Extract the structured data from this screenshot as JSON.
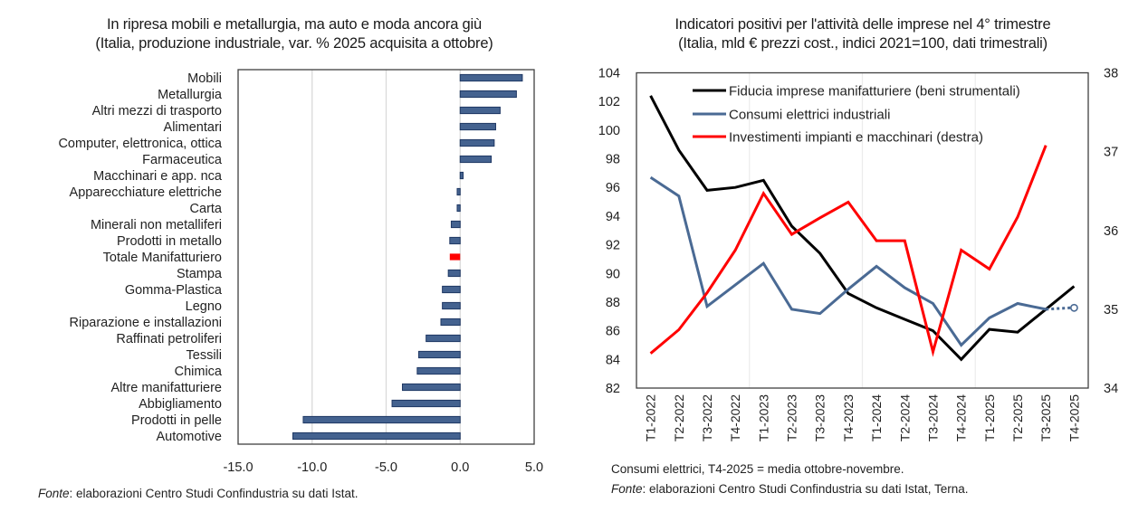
{
  "left": {
    "title": "In ripresa mobili e metallurgia, ma auto e moda ancora giù",
    "subtitle": "(Italia, produzione industriale, var. % 2025 acquisita a ottobre)",
    "source_label": "Fonte",
    "source_text": ": elaborazioni Centro Studi Confindustria su dati Istat.",
    "colors": {
      "bar": "#44628f",
      "bar_border": "#1f3864",
      "highlight": "#ff0000",
      "grid": "#d9d9d9"
    }
  },
  "right": {
    "title": "Indicatori positivi per l'attività delle imprese nel 4° trimestre",
    "subtitle": "(Italia, mld € prezzi cost., indici 2021=100, dati trimestrali)",
    "note": "Consumi elettrici, T4-2025 = media ottobre-novembre.",
    "source_label": "Fonte",
    "source_text": ": elaborazioni Centro Studi Confindustria su dati Istat, Terna.",
    "colors": {
      "black": "#000000",
      "blue": "#4a6a94",
      "red": "#ff0000",
      "grid": "#ececec"
    }
  },
  "chart_data": [
    {
      "type": "bar",
      "orientation": "horizontal",
      "title": "In ripresa mobili e metallurgia, ma auto e moda ancora giù",
      "subtitle": "(Italia, produzione industriale, var. % 2025 acquisita a ottobre)",
      "xlabel": "",
      "ylabel": "",
      "xlim": [
        -15,
        5
      ],
      "xticks": [
        "-15.0",
        "-10.0",
        "-5.0",
        "0.0",
        "5.0"
      ],
      "xtick_values": [
        -15,
        -10,
        -5,
        0,
        5
      ],
      "grid": "vertical",
      "categories": [
        "Mobili",
        "Metallurgia",
        "Altri mezzi di trasporto",
        "Alimentari",
        "Computer, elettronica, ottica",
        "Farmaceutica",
        "Macchinari e app. nca",
        "Apparecchiature elettriche",
        "Carta",
        "Minerali non metalliferi",
        "Prodotti in metallo",
        "Totale Manifatturiero",
        "Stampa",
        "Gomma-Plastica",
        "Legno",
        "Riparazione e installazioni",
        "Raffinati petroliferi",
        "Tessili",
        "Chimica",
        "Altre manifatturiere",
        "Abbigliamento",
        "Prodotti in pelle",
        "Automotive"
      ],
      "values": [
        4.2,
        3.8,
        2.7,
        2.4,
        2.3,
        2.1,
        0.2,
        -0.2,
        -0.2,
        -0.6,
        -0.7,
        -0.7,
        -0.8,
        -1.2,
        -1.2,
        -1.3,
        -2.3,
        -2.8,
        -2.9,
        -3.9,
        -4.6,
        -10.6,
        -11.3
      ],
      "highlight": "Totale Manifatturiero"
    },
    {
      "type": "line",
      "title": "Indicatori positivi per l'attività delle imprese nel 4° trimestre",
      "subtitle": "(Italia, mld € prezzi cost., indici 2021=100, dati trimestrali)",
      "x": [
        "T1-2022",
        "T2-2022",
        "T3-2022",
        "T4-2022",
        "T1-2023",
        "T2-2023",
        "T3-2023",
        "T4-2023",
        "T1-2024",
        "T2-2024",
        "T3-2024",
        "T4-2024",
        "T1-2025",
        "T2-2025",
        "T3-2025",
        "T4-2025"
      ],
      "ylim": [
        82,
        104
      ],
      "yticks": [
        82,
        84,
        86,
        88,
        90,
        92,
        94,
        96,
        98,
        100,
        102,
        104
      ],
      "y2lim": [
        34,
        38
      ],
      "y2ticks": [
        34,
        35,
        36,
        37,
        38
      ],
      "legend": "top-right",
      "series": [
        {
          "name": "Fiducia imprese manifatturiere (beni strumentali)",
          "axis": "left",
          "color": "#000000",
          "values": [
            102.4,
            98.6,
            95.8,
            96.0,
            96.5,
            93.3,
            91.4,
            88.6,
            87.6,
            86.8,
            86.0,
            84.0,
            86.1,
            85.9,
            87.5,
            89.1
          ]
        },
        {
          "name": "Consumi elettrici industriali",
          "axis": "left",
          "color": "#4a6a94",
          "values": [
            96.7,
            95.4,
            87.7,
            89.2,
            90.7,
            87.5,
            87.2,
            88.9,
            90.5,
            89.0,
            87.9,
            85.0,
            86.9,
            87.9,
            87.5,
            87.6
          ],
          "estimated_last": true
        },
        {
          "name": "Investimenti impianti e macchinari (destra)",
          "axis": "right",
          "color": "#ff0000",
          "values": [
            34.44,
            34.74,
            35.21,
            35.75,
            36.47,
            35.95,
            36.16,
            36.36,
            35.87,
            35.87,
            34.46,
            35.75,
            35.51,
            36.17,
            37.08,
            null
          ]
        }
      ]
    }
  ]
}
